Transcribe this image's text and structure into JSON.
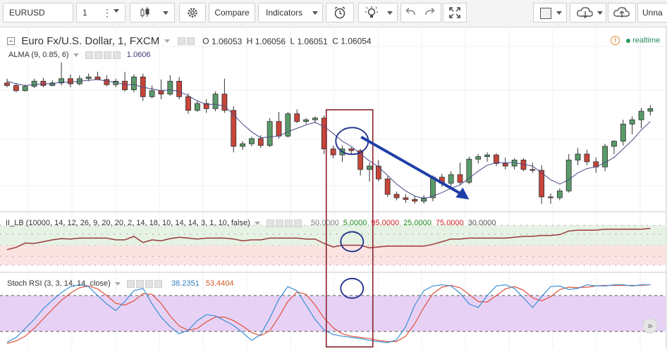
{
  "toolbar": {
    "symbol": "EURUSD",
    "interval": "1",
    "compare_label": "Compare",
    "indicators_label": "Indicators",
    "layout_name": "Unna",
    "icons": [
      "candles-icon",
      "gear-icon",
      "alert-clock-icon",
      "bulb-icon",
      "undo-icon",
      "redo-icon",
      "fullscreen-icon",
      "cloud-download-icon",
      "cloud-upload-icon"
    ]
  },
  "main_legend": {
    "title": "Euro Fx/U.S. Dollar, 1, FXCM",
    "o_label": "O",
    "o_value": "1.06053",
    "h_label": "H",
    "h_value": "1.06056",
    "l_label": "L",
    "l_value": "1.06051",
    "c_label": "C",
    "c_value": "1.06054",
    "realtime_label": "realtime",
    "alma_label": "ALMA (9, 0.85, 6)",
    "alma_value": "1.0606"
  },
  "ll_legend": {
    "label": "II_LB (10000, 14, 12, 26, 9, 20, 20, 2, 14, 18, 10, 14, 14, 3, 1, 10, false)",
    "values": [
      {
        "text": "50.0000",
        "color": "#808080"
      },
      {
        "text": "5.0000",
        "color": "#1a8c1a"
      },
      {
        "text": "95.0000",
        "color": "#d02020"
      },
      {
        "text": "25.0000",
        "color": "#1a8c1a"
      },
      {
        "text": "75.0000",
        "color": "#d02020"
      },
      {
        "text": "30.0000",
        "color": "#555555"
      }
    ]
  },
  "rsi_legend": {
    "label": "Stoch RSI (3, 3, 14, 14, close)",
    "k_value": "38.2351",
    "d_value": "53.4404"
  },
  "colors": {
    "up": "#5a9b6a",
    "down": "#c8453a",
    "alma": "#4a4a8a",
    "arrow": "#1f3fa6",
    "annotation": "#8b1f2b",
    "circle": "#1f2f8c",
    "rsi_k": "#3a8fd6",
    "rsi_d": "#e0503a",
    "ll_line": "#9a3a3a"
  },
  "chart_data": {
    "type": "candlestick",
    "candles": [
      {
        "o": 1.06083,
        "h": 1.06088,
        "l": 1.06078,
        "c": 1.0608
      },
      {
        "o": 1.0608,
        "h": 1.06083,
        "l": 1.06072,
        "c": 1.06074
      },
      {
        "o": 1.06074,
        "h": 1.06081,
        "l": 1.06073,
        "c": 1.06079
      },
      {
        "o": 1.06079,
        "h": 1.06088,
        "l": 1.06077,
        "c": 1.06085
      },
      {
        "o": 1.06085,
        "h": 1.06089,
        "l": 1.06078,
        "c": 1.0608
      },
      {
        "o": 1.0608,
        "h": 1.06086,
        "l": 1.06079,
        "c": 1.06083
      },
      {
        "o": 1.06083,
        "h": 1.06107,
        "l": 1.0608,
        "c": 1.06088
      },
      {
        "o": 1.06088,
        "h": 1.06093,
        "l": 1.06078,
        "c": 1.06082
      },
      {
        "o": 1.06082,
        "h": 1.06092,
        "l": 1.0608,
        "c": 1.06088
      },
      {
        "o": 1.06088,
        "h": 1.06094,
        "l": 1.06085,
        "c": 1.0609
      },
      {
        "o": 1.0609,
        "h": 1.06096,
        "l": 1.06086,
        "c": 1.06087
      },
      {
        "o": 1.06087,
        "h": 1.06092,
        "l": 1.06079,
        "c": 1.06081
      },
      {
        "o": 1.06081,
        "h": 1.06088,
        "l": 1.06078,
        "c": 1.06085
      },
      {
        "o": 1.06085,
        "h": 1.06096,
        "l": 1.06073,
        "c": 1.06075
      },
      {
        "o": 1.06075,
        "h": 1.06093,
        "l": 1.06072,
        "c": 1.0609
      },
      {
        "o": 1.0609,
        "h": 1.06094,
        "l": 1.06062,
        "c": 1.06067
      },
      {
        "o": 1.06067,
        "h": 1.0608,
        "l": 1.06065,
        "c": 1.06074
      },
      {
        "o": 1.06074,
        "h": 1.06087,
        "l": 1.06064,
        "c": 1.0607
      },
      {
        "o": 1.0607,
        "h": 1.06092,
        "l": 1.06068,
        "c": 1.06085
      },
      {
        "o": 1.06085,
        "h": 1.0609,
        "l": 1.06064,
        "c": 1.06067
      },
      {
        "o": 1.06067,
        "h": 1.06071,
        "l": 1.06047,
        "c": 1.06051
      },
      {
        "o": 1.06051,
        "h": 1.06062,
        "l": 1.06049,
        "c": 1.06059
      },
      {
        "o": 1.06059,
        "h": 1.06064,
        "l": 1.06048,
        "c": 1.06053
      },
      {
        "o": 1.06053,
        "h": 1.06073,
        "l": 1.0605,
        "c": 1.0607
      },
      {
        "o": 1.0607,
        "h": 1.06088,
        "l": 1.06048,
        "c": 1.06051
      },
      {
        "o": 1.06051,
        "h": 1.06056,
        "l": 1.06002,
        "c": 1.06009
      },
      {
        "o": 1.06009,
        "h": 1.06015,
        "l": 1.06005,
        "c": 1.06012
      },
      {
        "o": 1.06012,
        "h": 1.0602,
        "l": 1.06009,
        "c": 1.06018
      },
      {
        "o": 1.06018,
        "h": 1.06022,
        "l": 1.06007,
        "c": 1.0601
      },
      {
        "o": 1.0601,
        "h": 1.06042,
        "l": 1.06008,
        "c": 1.06038
      },
      {
        "o": 1.06038,
        "h": 1.06049,
        "l": 1.06018,
        "c": 1.06021
      },
      {
        "o": 1.06021,
        "h": 1.06049,
        "l": 1.06019,
        "c": 1.06047
      },
      {
        "o": 1.06047,
        "h": 1.06052,
        "l": 1.06036,
        "c": 1.06038
      },
      {
        "o": 1.06038,
        "h": 1.06042,
        "l": 1.06035,
        "c": 1.0604
      },
      {
        "o": 1.0604,
        "h": 1.06044,
        "l": 1.06036,
        "c": 1.06042
      },
      {
        "o": 1.06042,
        "h": 1.06045,
        "l": 1.06,
        "c": 1.06006
      },
      {
        "o": 1.06006,
        "h": 1.0601,
        "l": 1.05995,
        "c": 1.05999
      },
      {
        "o": 1.05999,
        "h": 1.0601,
        "l": 1.05991,
        "c": 1.06006
      },
      {
        "o": 1.06006,
        "h": 1.06008,
        "l": 1.05999,
        "c": 1.06004
      },
      {
        "o": 1.06004,
        "h": 1.06006,
        "l": 1.05975,
        "c": 1.05982
      },
      {
        "o": 1.05982,
        "h": 1.0599,
        "l": 1.05968,
        "c": 1.05986
      },
      {
        "o": 1.05986,
        "h": 1.05993,
        "l": 1.05968,
        "c": 1.05971
      },
      {
        "o": 1.05971,
        "h": 1.05974,
        "l": 1.0595,
        "c": 1.05953
      },
      {
        "o": 1.05953,
        "h": 1.05956,
        "l": 1.05946,
        "c": 1.05949
      },
      {
        "o": 1.05949,
        "h": 1.05953,
        "l": 1.05943,
        "c": 1.05947
      },
      {
        "o": 1.05947,
        "h": 1.05951,
        "l": 1.05942,
        "c": 1.05945
      },
      {
        "o": 1.05945,
        "h": 1.05952,
        "l": 1.05942,
        "c": 1.05949
      },
      {
        "o": 1.05949,
        "h": 1.05975,
        "l": 1.05945,
        "c": 1.05973
      },
      {
        "o": 1.05973,
        "h": 1.05977,
        "l": 1.05962,
        "c": 1.05966
      },
      {
        "o": 1.05966,
        "h": 1.0598,
        "l": 1.05962,
        "c": 1.05976
      },
      {
        "o": 1.05976,
        "h": 1.0599,
        "l": 1.05964,
        "c": 1.05967
      },
      {
        "o": 1.05967,
        "h": 1.05997,
        "l": 1.05965,
        "c": 1.05994
      },
      {
        "o": 1.05994,
        "h": 1.06,
        "l": 1.05989,
        "c": 1.05997
      },
      {
        "o": 1.05997,
        "h": 1.06002,
        "l": 1.05991,
        "c": 1.05999
      },
      {
        "o": 1.05999,
        "h": 1.06001,
        "l": 1.05986,
        "c": 1.05989
      },
      {
        "o": 1.05989,
        "h": 1.05996,
        "l": 1.05982,
        "c": 1.05986
      },
      {
        "o": 1.05986,
        "h": 1.05995,
        "l": 1.05982,
        "c": 1.05993
      },
      {
        "o": 1.05993,
        "h": 1.05995,
        "l": 1.0598,
        "c": 1.05982
      },
      {
        "o": 1.05982,
        "h": 1.0599,
        "l": 1.05978,
        "c": 1.05981
      },
      {
        "o": 1.05981,
        "h": 1.05987,
        "l": 1.05942,
        "c": 1.0595
      },
      {
        "o": 1.0595,
        "h": 1.05954,
        "l": 1.05942,
        "c": 1.05949
      },
      {
        "o": 1.05949,
        "h": 1.0596,
        "l": 1.05946,
        "c": 1.05957
      },
      {
        "o": 1.05957,
        "h": 1.06,
        "l": 1.05955,
        "c": 1.05993
      },
      {
        "o": 1.05993,
        "h": 1.06007,
        "l": 1.05987,
        "c": 1.06
      },
      {
        "o": 1.06,
        "h": 1.06005,
        "l": 1.05987,
        "c": 1.05991
      },
      {
        "o": 1.05991,
        "h": 1.05996,
        "l": 1.05978,
        "c": 1.05985
      },
      {
        "o": 1.05985,
        "h": 1.06012,
        "l": 1.0598,
        "c": 1.06009
      },
      {
        "o": 1.06009,
        "h": 1.06016,
        "l": 1.06,
        "c": 1.06015
      },
      {
        "o": 1.06015,
        "h": 1.0604,
        "l": 1.0601,
        "c": 1.06035
      },
      {
        "o": 1.06035,
        "h": 1.06044,
        "l": 1.06023,
        "c": 1.0604
      },
      {
        "o": 1.0604,
        "h": 1.06054,
        "l": 1.0603,
        "c": 1.0605
      },
      {
        "o": 1.0605,
        "h": 1.06057,
        "l": 1.06045,
        "c": 1.06053
      }
    ],
    "alma": [
      1.06085,
      1.06082,
      1.0608,
      1.06081,
      1.06082,
      1.06082,
      1.06084,
      1.06084,
      1.06085,
      1.06086,
      1.06087,
      1.06085,
      1.06084,
      1.06081,
      1.06081,
      1.06078,
      1.06076,
      1.06074,
      1.06075,
      1.06073,
      1.06068,
      1.06062,
      1.06058,
      1.06058,
      1.06056,
      1.06046,
      1.06035,
      1.06026,
      1.06019,
      1.0602,
      1.06021,
      1.06026,
      1.0603,
      1.06034,
      1.06037,
      1.06032,
      1.06024,
      1.06015,
      1.06009,
      1.06,
      1.05992,
      1.05985,
      1.05975,
      1.05965,
      1.05957,
      1.05951,
      1.05948,
      1.05951,
      1.05955,
      1.0596,
      1.05964,
      1.05972,
      1.0598,
      1.05987,
      1.0599,
      1.0599,
      1.0599,
      1.05988,
      1.05986,
      1.05978,
      1.0597,
      1.05965,
      1.0597,
      1.05978,
      1.05983,
      1.05985,
      1.0599,
      1.05996,
      1.06006,
      1.06016,
      1.06028,
      1.06038
    ],
    "ll": [
      40,
      45,
      55,
      54,
      58,
      62,
      65,
      64,
      66,
      66,
      66,
      66,
      62,
      62,
      70,
      56,
      62,
      60,
      65,
      68,
      66,
      64,
      66,
      66,
      66,
      64,
      60,
      62,
      62,
      66,
      66,
      66,
      66,
      64,
      64,
      54,
      46,
      50,
      50,
      50,
      44,
      46,
      48,
      48,
      48,
      48,
      48,
      52,
      58,
      64,
      64,
      66,
      66,
      66,
      66,
      66,
      68,
      70,
      70,
      72,
      72,
      74,
      82,
      84,
      84,
      84,
      86,
      86,
      86,
      86,
      86,
      88
    ],
    "ll_bands": [
      95,
      75,
      50,
      25,
      5
    ],
    "rsi_k": [
      2,
      10,
      25,
      40,
      58,
      72,
      85,
      95,
      98,
      95,
      80,
      66,
      55,
      70,
      88,
      92,
      66,
      44,
      28,
      16,
      22,
      38,
      48,
      46,
      38,
      30,
      18,
      5,
      15,
      42,
      74,
      95,
      88,
      64,
      40,
      22,
      15,
      12,
      10,
      8,
      5,
      3,
      1,
      6,
      28,
      64,
      88,
      96,
      98,
      96,
      84,
      66,
      60,
      80,
      96,
      98,
      92,
      76,
      60,
      78,
      95,
      96,
      90,
      92,
      98,
      96,
      96,
      98,
      98,
      96,
      98,
      98
    ],
    "rsi_d": [
      0,
      4,
      12,
      25,
      41,
      57,
      72,
      84,
      93,
      96,
      91,
      80,
      67,
      64,
      71,
      83,
      82,
      67,
      46,
      29,
      22,
      25,
      36,
      44,
      44,
      38,
      29,
      18,
      13,
      21,
      44,
      70,
      86,
      82,
      64,
      42,
      26,
      16,
      12,
      10,
      8,
      5,
      3,
      3,
      12,
      33,
      60,
      83,
      94,
      97,
      93,
      82,
      70,
      69,
      80,
      91,
      95,
      89,
      76,
      71,
      78,
      90,
      94,
      93,
      94,
      96,
      97,
      97,
      97,
      97,
      97,
      98
    ]
  }
}
